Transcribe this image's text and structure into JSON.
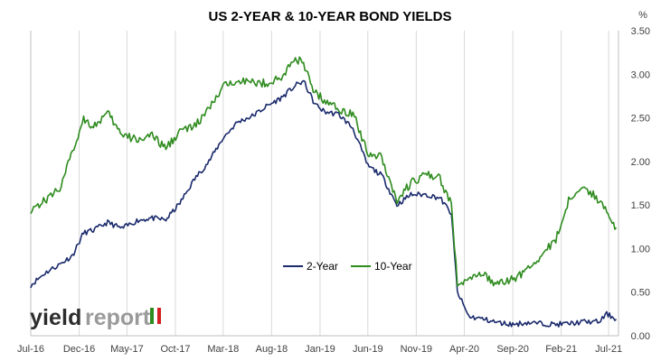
{
  "chart_data": {
    "type": "line",
    "title": "US 2-YEAR & 10-YEAR BOND YIELDS",
    "y_unit_label": "%",
    "xlabel": "",
    "ylabel": "",
    "ylim": [
      0,
      3.5
    ],
    "yticks": [
      "0.00",
      "0.50",
      "1.00",
      "1.50",
      "2.00",
      "2.50",
      "3.00",
      "3.50"
    ],
    "xticks": [
      "Jul-16",
      "Dec-16",
      "May-17",
      "Oct-17",
      "Mar-18",
      "Aug-18",
      "Jan-19",
      "Jun-19",
      "Nov-19",
      "Apr-20",
      "Sep-20",
      "Feb-21",
      "Jul-21"
    ],
    "grid": "vertical",
    "legend_position": "bottom-center",
    "colors": {
      "two_year": "#1a2a6c",
      "ten_year": "#2e8b1e",
      "grid": "#d9d9d9",
      "axis": "#bfbfbf"
    },
    "series": [
      {
        "name": "2-Year",
        "color": "#1a2a6c",
        "x": [
          "2016-07-01",
          "2016-08-15",
          "2016-10-01",
          "2016-11-10",
          "2016-12-15",
          "2017-01-15",
          "2017-03-01",
          "2017-04-15",
          "2017-06-01",
          "2017-07-15",
          "2017-09-01",
          "2017-10-15",
          "2017-12-01",
          "2018-01-15",
          "2018-03-01",
          "2018-04-15",
          "2018-06-01",
          "2018-07-15",
          "2018-09-01",
          "2018-10-15",
          "2018-11-10",
          "2018-12-15",
          "2019-01-15",
          "2019-03-01",
          "2019-04-15",
          "2019-06-01",
          "2019-07-15",
          "2019-09-01",
          "2019-10-15",
          "2019-12-01",
          "2020-01-15",
          "2020-02-20",
          "2020-03-10",
          "2020-04-15",
          "2020-06-01",
          "2020-07-15",
          "2020-09-01",
          "2020-10-15",
          "2020-12-01",
          "2021-01-15",
          "2021-03-01",
          "2021-04-15",
          "2021-06-01",
          "2021-06-25",
          "2021-07-25"
        ],
        "values": [
          0.58,
          0.72,
          0.82,
          0.92,
          1.18,
          1.21,
          1.3,
          1.23,
          1.32,
          1.35,
          1.33,
          1.52,
          1.8,
          2.0,
          2.27,
          2.45,
          2.52,
          2.63,
          2.73,
          2.87,
          2.92,
          2.66,
          2.57,
          2.54,
          2.38,
          1.95,
          1.84,
          1.5,
          1.62,
          1.62,
          1.58,
          1.4,
          0.5,
          0.22,
          0.19,
          0.15,
          0.13,
          0.15,
          0.14,
          0.13,
          0.14,
          0.16,
          0.16,
          0.25,
          0.19
        ]
      },
      {
        "name": "10-Year",
        "color": "#2e8b1e",
        "x": [
          "2016-07-01",
          "2016-08-15",
          "2016-10-01",
          "2016-11-10",
          "2016-12-15",
          "2017-01-15",
          "2017-03-01",
          "2017-04-15",
          "2017-06-01",
          "2017-07-15",
          "2017-09-01",
          "2017-10-15",
          "2017-12-01",
          "2018-01-15",
          "2018-03-01",
          "2018-04-15",
          "2018-06-01",
          "2018-07-15",
          "2018-09-01",
          "2018-10-15",
          "2018-11-10",
          "2018-12-15",
          "2019-01-15",
          "2019-03-01",
          "2019-04-15",
          "2019-06-01",
          "2019-07-15",
          "2019-09-01",
          "2019-10-15",
          "2019-12-01",
          "2020-01-15",
          "2020-02-20",
          "2020-03-10",
          "2020-04-15",
          "2020-06-01",
          "2020-07-15",
          "2020-09-01",
          "2020-10-15",
          "2020-12-01",
          "2021-01-15",
          "2021-03-01",
          "2021-04-15",
          "2021-06-01",
          "2021-06-25",
          "2021-07-25"
        ],
        "values": [
          1.45,
          1.55,
          1.7,
          2.1,
          2.5,
          2.4,
          2.55,
          2.3,
          2.25,
          2.3,
          2.15,
          2.35,
          2.4,
          2.6,
          2.85,
          2.95,
          2.9,
          2.9,
          2.95,
          3.2,
          3.1,
          2.8,
          2.7,
          2.6,
          2.55,
          2.1,
          2.05,
          1.55,
          1.75,
          1.85,
          1.8,
          1.5,
          0.6,
          0.65,
          0.7,
          0.58,
          0.65,
          0.75,
          0.92,
          1.1,
          1.6,
          1.7,
          1.55,
          1.45,
          1.24
        ]
      }
    ]
  }
}
